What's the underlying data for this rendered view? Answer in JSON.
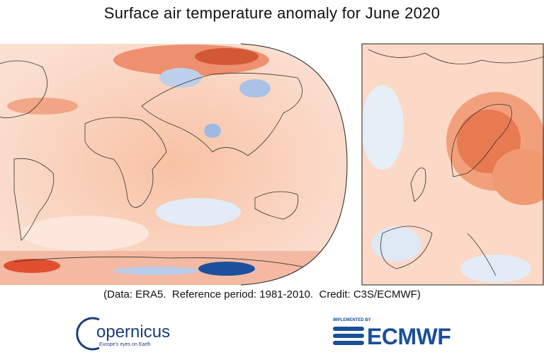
{
  "header": {
    "title": "Surface air temperature anomaly for June 2020"
  },
  "caption": "(Data: ERA5.  Reference period: 1981-2010.  Credit: C3S/ECMWF)",
  "logos": {
    "copernicus": {
      "name": "opernicus",
      "tagline": "Europe's eyes on Earth"
    },
    "ecmwf": {
      "tagline": "IMPLEMENTED BY",
      "name": "ECMWF"
    }
  }
}
